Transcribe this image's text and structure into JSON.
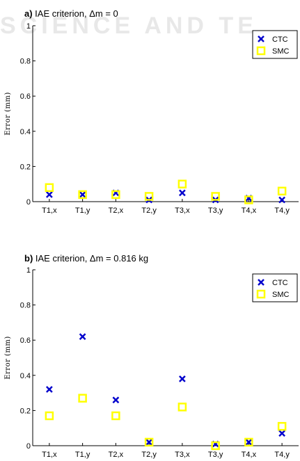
{
  "watermark": "SCIENCE AND TE",
  "chart_data": [
    {
      "type": "scatter",
      "panel": "a)",
      "title": "IAE criterion, Δm = 0",
      "ylabel": "Error (mm)",
      "categories": [
        "T1,x",
        "T1,y",
        "T2,x",
        "T2,y",
        "T3,x",
        "T3,y",
        "T4,x",
        "T4,y"
      ],
      "yticks": [
        "0",
        "0.2",
        "0.4",
        "0.6",
        "0.8",
        "1"
      ],
      "ylim": [
        0,
        1
      ],
      "legend_position": "top-right",
      "series": [
        {
          "name": "CTC",
          "marker": "x",
          "color": "#0000cc",
          "values": [
            0.04,
            0.04,
            0.05,
            0.01,
            0.05,
            0.01,
            0.02,
            0.01
          ]
        },
        {
          "name": "SMC",
          "marker": "square",
          "color": "#ffff00",
          "values": [
            0.08,
            0.04,
            0.04,
            0.03,
            0.1,
            0.03,
            0.01,
            0.06
          ]
        }
      ]
    },
    {
      "type": "scatter",
      "panel": "b)",
      "title": "IAE criterion, Δm = 0.816 kg",
      "ylabel": "Error (mm)",
      "categories": [
        "T1,x",
        "T1,y",
        "T2,x",
        "T2,y",
        "T3,x",
        "T3,y",
        "T4,x",
        "T4,y"
      ],
      "yticks": [
        "0",
        "0.2",
        "0.4",
        "0.6",
        "0.8",
        "1"
      ],
      "ylim": [
        0,
        1
      ],
      "legend_position": "top-right",
      "series": [
        {
          "name": "CTC",
          "marker": "x",
          "color": "#0000cc",
          "values": [
            0.32,
            0.62,
            0.26,
            0.02,
            0.38,
            0.01,
            0.02,
            0.07
          ]
        },
        {
          "name": "SMC",
          "marker": "square",
          "color": "#ffff00",
          "values": [
            0.17,
            0.27,
            0.17,
            0.02,
            0.22,
            0.0,
            0.02,
            0.11
          ]
        }
      ]
    }
  ]
}
